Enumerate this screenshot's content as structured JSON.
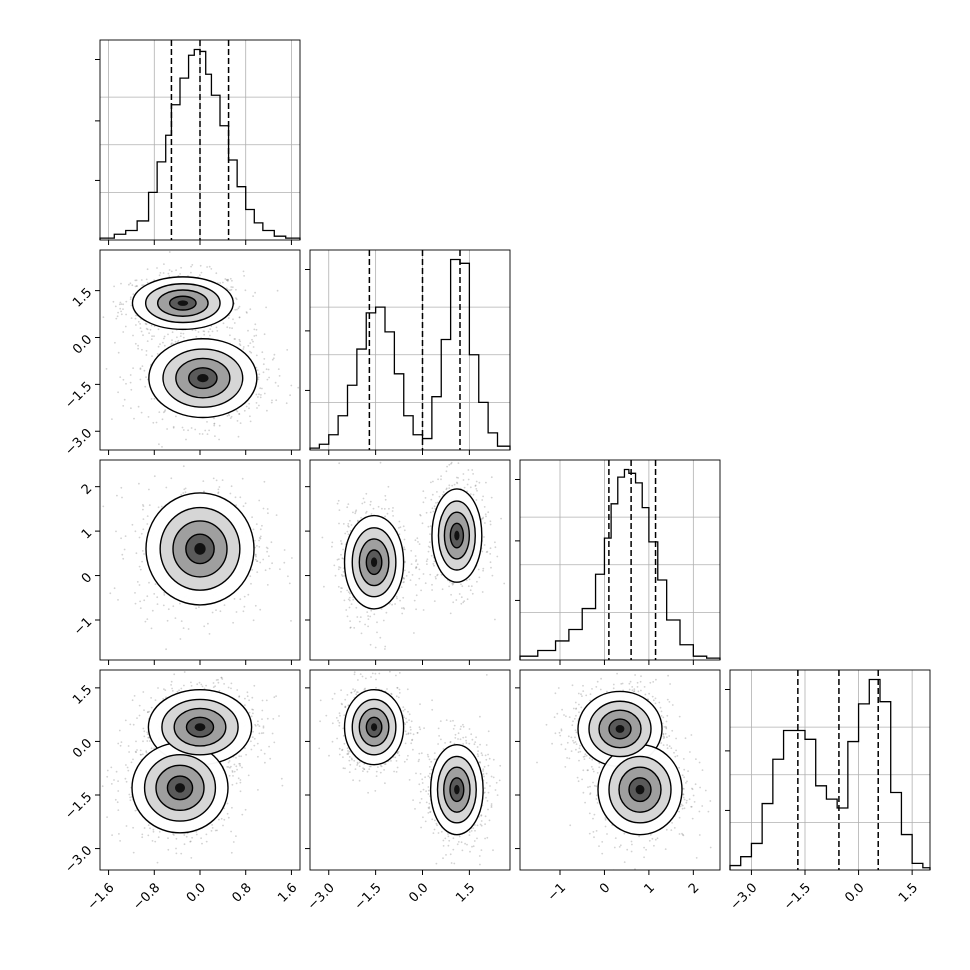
{
  "chart_data": {
    "type": "corner",
    "parameters": 4,
    "colors": {
      "line": "#000000",
      "grid": "#b0b0b0",
      "point": "#7f7f7f",
      "background": "#ffffff"
    },
    "axes": [
      {
        "lim": [
          -1.75,
          1.75
        ],
        "ticks": [
          -1.6,
          -0.8,
          0.0,
          0.8,
          1.6
        ],
        "tick_labels": [
          "−1.6",
          "−0.8",
          "0.0",
          "0.8",
          "1.6"
        ]
      },
      {
        "lim": [
          -3.6,
          2.8
        ],
        "ticks": [
          -3.0,
          -1.5,
          0.0,
          1.5
        ],
        "tick_labels": [
          "−3.0",
          "−1.5",
          "0.0",
          "1.5"
        ]
      },
      {
        "lim": [
          -1.9,
          2.6
        ],
        "ticks": [
          -1,
          0,
          1,
          2
        ],
        "tick_labels": [
          "−1",
          "0",
          "1",
          "2"
        ]
      },
      {
        "lim": [
          -3.6,
          2.0
        ],
        "ticks": [
          -3.0,
          -1.5,
          0.0,
          1.5
        ],
        "tick_labels": [
          "−3.0",
          "−1.5",
          "0.0",
          "1.5"
        ]
      }
    ],
    "quantiles": [
      [
        -0.5,
        0.0,
        0.5
      ],
      [
        -1.7,
        0.0,
        1.2
      ],
      [
        0.1,
        0.6,
        1.15
      ],
      [
        -1.7,
        -0.55,
        0.55
      ]
    ],
    "histograms": [
      {
        "bin_edges": [
          -1.75,
          -1.5,
          -1.3,
          -1.1,
          -0.9,
          -0.75,
          -0.6,
          -0.5,
          -0.35,
          -0.2,
          -0.1,
          0.0,
          0.1,
          0.2,
          0.35,
          0.5,
          0.65,
          0.8,
          0.95,
          1.1,
          1.3,
          1.5,
          1.75
        ],
        "counts": [
          0.01,
          0.03,
          0.05,
          0.1,
          0.25,
          0.41,
          0.55,
          0.71,
          0.85,
          0.97,
          1.0,
          0.99,
          0.87,
          0.76,
          0.6,
          0.42,
          0.28,
          0.16,
          0.09,
          0.05,
          0.02,
          0.01
        ]
      },
      {
        "bin_edges": [
          -3.6,
          -3.3,
          -3.0,
          -2.7,
          -2.4,
          -2.1,
          -1.8,
          -1.5,
          -1.2,
          -0.9,
          -0.6,
          -0.3,
          0.0,
          0.3,
          0.6,
          0.9,
          1.2,
          1.5,
          1.8,
          2.1,
          2.4,
          2.8
        ],
        "counts": [
          0.01,
          0.03,
          0.08,
          0.18,
          0.34,
          0.53,
          0.72,
          0.75,
          0.62,
          0.4,
          0.18,
          0.08,
          0.06,
          0.28,
          0.58,
          1.0,
          0.98,
          0.5,
          0.25,
          0.09,
          0.02
        ]
      },
      {
        "bin_edges": [
          -1.9,
          -1.5,
          -1.1,
          -0.8,
          -0.5,
          -0.2,
          0.0,
          0.15,
          0.3,
          0.45,
          0.55,
          0.7,
          0.85,
          1.0,
          1.2,
          1.4,
          1.7,
          2.0,
          2.3,
          2.6
        ],
        "counts": [
          0.02,
          0.05,
          0.1,
          0.16,
          0.27,
          0.45,
          0.64,
          0.82,
          0.96,
          1.0,
          0.98,
          0.93,
          0.8,
          0.62,
          0.42,
          0.21,
          0.08,
          0.02,
          0.01
        ]
      },
      {
        "bin_edges": [
          -3.6,
          -3.3,
          -3.0,
          -2.7,
          -2.4,
          -2.1,
          -1.8,
          -1.5,
          -1.2,
          -0.9,
          -0.6,
          -0.3,
          0.0,
          0.3,
          0.6,
          0.9,
          1.2,
          1.5,
          1.8,
          2.0
        ],
        "counts": [
          0.02,
          0.06,
          0.12,
          0.3,
          0.5,
          0.63,
          0.63,
          0.59,
          0.38,
          0.32,
          0.28,
          0.58,
          0.75,
          0.86,
          0.76,
          0.35,
          0.16,
          0.03,
          0.01
        ]
      }
    ],
    "density_2d": [
      {
        "x": 0,
        "y": 1,
        "modes": [
          {
            "center": [
              -0.3,
              1.1
            ],
            "sigma": [
              0.42,
              0.4
            ]
          },
          {
            "center": [
              0.05,
              -1.3
            ],
            "sigma": [
              0.45,
              0.6
            ]
          }
        ]
      },
      {
        "x": 0,
        "y": 2,
        "modes": [
          {
            "center": [
              0.0,
              0.6
            ],
            "sigma": [
              0.45,
              0.6
            ]
          }
        ]
      },
      {
        "x": 1,
        "y": 2,
        "modes": [
          {
            "center": [
              -1.55,
              0.3
            ],
            "sigma": [
              0.45,
              0.5
            ]
          },
          {
            "center": [
              1.1,
              0.9
            ],
            "sigma": [
              0.38,
              0.5
            ]
          }
        ]
      },
      {
        "x": 0,
        "y": 3,
        "modes": [
          {
            "center": [
              0.0,
              0.4
            ],
            "sigma": [
              0.43,
              0.5
            ]
          },
          {
            "center": [
              -0.35,
              -1.3
            ],
            "sigma": [
              0.4,
              0.6
            ]
          }
        ]
      },
      {
        "x": 1,
        "y": 3,
        "modes": [
          {
            "center": [
              -1.55,
              0.4
            ],
            "sigma": [
              0.45,
              0.5
            ]
          },
          {
            "center": [
              1.1,
              -1.35
            ],
            "sigma": [
              0.4,
              0.6
            ]
          }
        ]
      },
      {
        "x": 2,
        "y": 3,
        "modes": [
          {
            "center": [
              0.35,
              0.35
            ],
            "sigma": [
              0.45,
              0.5
            ]
          },
          {
            "center": [
              0.8,
              -1.35
            ],
            "sigma": [
              0.45,
              0.6
            ]
          }
        ]
      }
    ]
  }
}
